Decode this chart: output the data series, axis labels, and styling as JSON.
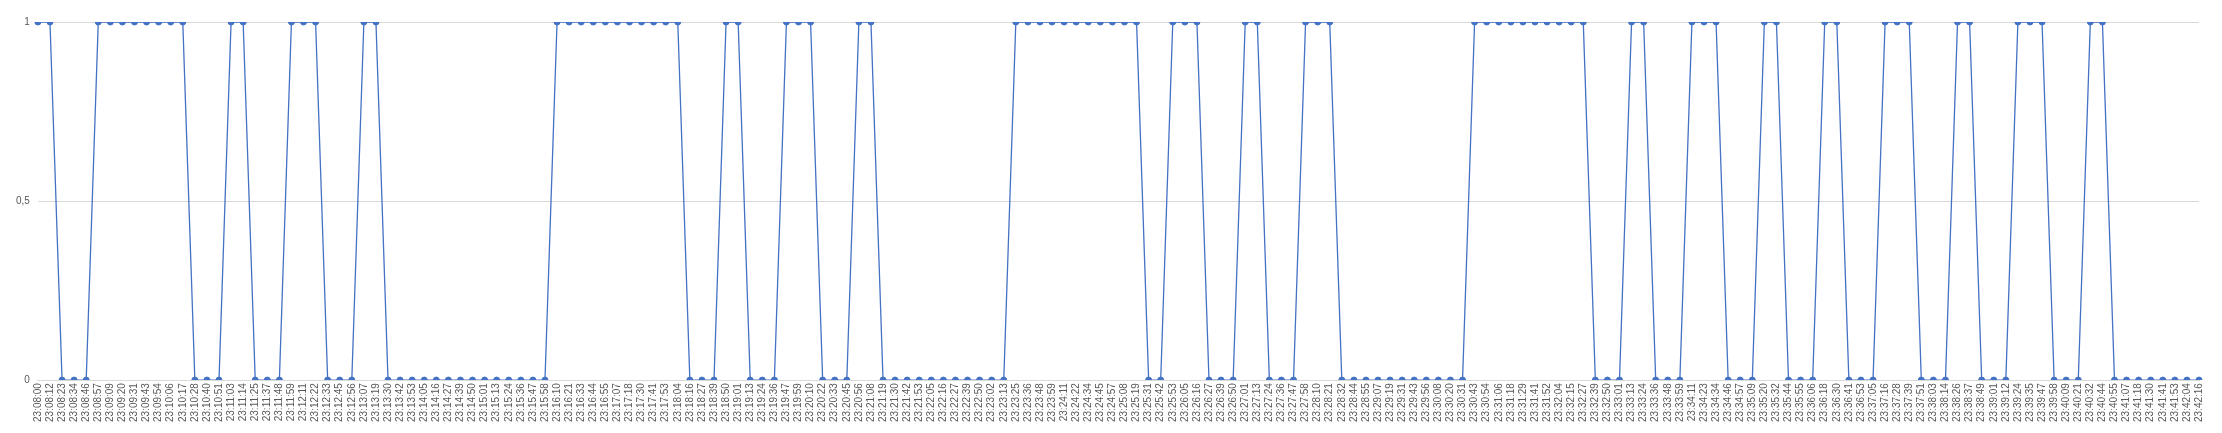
{
  "chart_data": {
    "type": "line",
    "categories": [
      "23:08:00",
      "23:08:12",
      "23:08:23",
      "23:08:34",
      "23:08:46",
      "23:08:57",
      "23:09:09",
      "23:09:20",
      "23:09:31",
      "23:09:43",
      "23:09:54",
      "23:10:06",
      "23:10:17",
      "23:10:28",
      "23:10:40",
      "23:10:51",
      "23:11:03",
      "23:11:14",
      "23:11:25",
      "23:11:37",
      "23:11:48",
      "23:11:59",
      "23:12:11",
      "23:12:22",
      "23:12:33",
      "23:12:45",
      "23:12:56",
      "23:13:07",
      "23:13:19",
      "23:13:30",
      "23:13:42",
      "23:13:53",
      "23:14:05",
      "23:14:16",
      "23:14:27",
      "23:14:39",
      "23:14:50",
      "23:15:01",
      "23:15:13",
      "23:15:24",
      "23:15:36",
      "23:15:47",
      "23:15:58",
      "23:16:10",
      "23:16:21",
      "23:16:33",
      "23:16:44",
      "23:16:55",
      "23:17:07",
      "23:17:18",
      "23:17:30",
      "23:17:41",
      "23:17:53",
      "23:18:04",
      "23:18:16",
      "23:18:27",
      "23:18:39",
      "23:18:50",
      "23:19:01",
      "23:19:13",
      "23:19:24",
      "23:19:36",
      "23:19:47",
      "23:19:59",
      "23:20:10",
      "23:20:22",
      "23:20:33",
      "23:20:45",
      "23:20:56",
      "23:21:08",
      "23:21:19",
      "23:21:30",
      "23:21:42",
      "23:21:53",
      "23:22:05",
      "23:22:16",
      "23:22:27",
      "23:22:39",
      "23:22:50",
      "23:23:02",
      "23:23:13",
      "23:23:25",
      "23:23:36",
      "23:23:48",
      "23:23:59",
      "23:24:11",
      "23:24:22",
      "23:24:34",
      "23:24:45",
      "23:24:57",
      "23:25:08",
      "23:25:19",
      "23:25:31",
      "23:25:42",
      "23:25:53",
      "23:26:05",
      "23:26:16",
      "23:26:27",
      "23:26:39",
      "23:26:50",
      "23:27:01",
      "23:27:13",
      "23:27:24",
      "23:27:36",
      "23:27:47",
      "23:27:58",
      "23:28:10",
      "23:28:21",
      "23:28:32",
      "23:28:44",
      "23:28:55",
      "23:29:07",
      "23:29:19",
      "23:29:31",
      "23:29:43",
      "23:29:56",
      "23:30:08",
      "23:30:20",
      "23:30:31",
      "23:30:43",
      "23:30:54",
      "23:31:06",
      "23:31:18",
      "23:31:29",
      "23:31:41",
      "23:31:52",
      "23:32:04",
      "23:32:15",
      "23:32:27",
      "23:32:39",
      "23:32:50",
      "23:33:01",
      "23:33:13",
      "23:33:24",
      "23:33:36",
      "23:33:48",
      "23:33:59",
      "23:34:11",
      "23:34:23",
      "23:34:34",
      "23:34:46",
      "23:34:57",
      "23:35:09",
      "23:35:20",
      "23:35:32",
      "23:35:44",
      "23:35:55",
      "23:36:06",
      "23:36:18",
      "23:36:30",
      "23:36:41",
      "23:36:53",
      "23:37:05",
      "23:37:16",
      "23:37:28",
      "23:37:39",
      "23:37:51",
      "23:38:03",
      "23:38:14",
      "23:38:26",
      "23:38:37",
      "23:38:49",
      "23:39:01",
      "23:39:12",
      "23:39:24",
      "23:39:35",
      "23:39:47",
      "23:39:58",
      "23:40:09",
      "23:40:21",
      "23:40:32",
      "23:40:44",
      "23:40:55",
      "23:41:07",
      "23:41:18",
      "23:41:30",
      "23:41:41",
      "23:41:53",
      "23:42:04",
      "23:42:16"
    ],
    "series": [
      {
        "color": "#4472c4",
        "values": [
          1,
          1,
          0,
          0,
          0,
          1,
          1,
          1,
          1,
          1,
          1,
          1,
          1,
          0,
          0,
          0,
          1,
          1,
          0,
          0,
          0,
          1,
          1,
          1,
          0,
          0,
          0,
          1,
          1,
          0,
          0,
          0,
          0,
          0,
          0,
          0,
          0,
          0,
          0,
          0,
          0,
          0,
          0,
          1,
          1,
          1,
          1,
          1,
          1,
          1,
          1,
          1,
          1,
          1,
          0,
          0,
          0,
          1,
          1,
          0,
          0,
          0,
          1,
          1,
          1,
          0,
          0,
          0,
          1,
          1,
          0,
          0,
          0,
          0,
          0,
          0,
          0,
          0,
          0,
          0,
          0,
          1,
          1,
          1,
          1,
          1,
          1,
          1,
          1,
          1,
          1,
          1,
          0,
          0,
          1,
          1,
          1,
          0,
          0,
          0,
          1,
          1,
          0,
          0,
          0,
          1,
          1,
          1,
          0,
          0,
          0,
          0,
          0,
          0,
          0,
          0,
          0,
          0,
          0,
          1,
          1,
          1,
          1,
          1,
          1,
          1,
          1,
          1,
          1,
          0,
          0,
          0,
          1,
          1,
          0,
          0,
          0,
          1,
          1,
          1,
          0,
          0,
          0,
          1,
          1,
          0,
          0,
          0,
          1,
          1,
          0,
          0,
          0,
          1,
          1,
          1,
          0,
          0,
          0,
          1,
          1,
          0,
          0,
          0,
          1,
          1,
          1,
          0,
          0,
          0,
          1,
          1,
          0,
          0,
          0,
          0,
          0,
          0,
          0,
          0
        ]
      }
    ],
    "ylim": [
      0,
      1
    ],
    "yticks": [
      0,
      {
        "value": 0.5,
        "label": "0,5"
      },
      1
    ],
    "grid": "y",
    "legend": false,
    "marker": "circle",
    "line_style": "solid"
  }
}
